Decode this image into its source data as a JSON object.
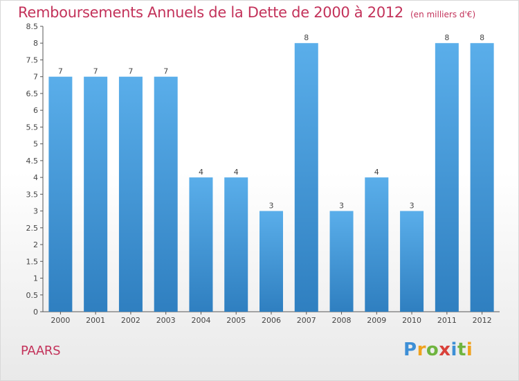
{
  "title": {
    "main": "Remboursements Annuels de la Dette de 2000 à 2012",
    "unit": "(en milliers d'€)"
  },
  "commune": "PAARS",
  "logo": {
    "letters": [
      "P",
      "r",
      "o",
      "x",
      "i",
      "t",
      "i"
    ],
    "colors": [
      "#3d8fd6",
      "#f0a21e",
      "#6fb43f",
      "#d9413a",
      "#3d8fd6",
      "#6fb43f",
      "#f0a21e"
    ]
  },
  "colors": {
    "bar_top": "#5aaeea",
    "bar_bottom": "#2f7fc0",
    "title": "#c3325a",
    "axis_text": "#444444"
  },
  "chart_data": {
    "type": "bar",
    "categories": [
      "2000",
      "2001",
      "2002",
      "2003",
      "2004",
      "2005",
      "2006",
      "2007",
      "2008",
      "2009",
      "2010",
      "2011",
      "2012"
    ],
    "values": [
      7,
      7,
      7,
      7,
      4,
      4,
      3,
      8,
      3,
      4,
      3,
      8,
      8
    ],
    "value_labels": [
      "7",
      "7",
      "7",
      "7",
      "4",
      "4",
      "3",
      "8",
      "3",
      "4",
      "3",
      "8",
      "8"
    ],
    "yticks": [
      "0",
      "0.5",
      "1",
      "1.5",
      "2",
      "2.5",
      "3",
      "3.5",
      "4",
      "4.5",
      "5",
      "5.5",
      "6",
      "6.5",
      "7",
      "7.5",
      "8",
      "8.5"
    ],
    "ylim": [
      0,
      8.5
    ],
    "grid": false,
    "legend": "none"
  }
}
